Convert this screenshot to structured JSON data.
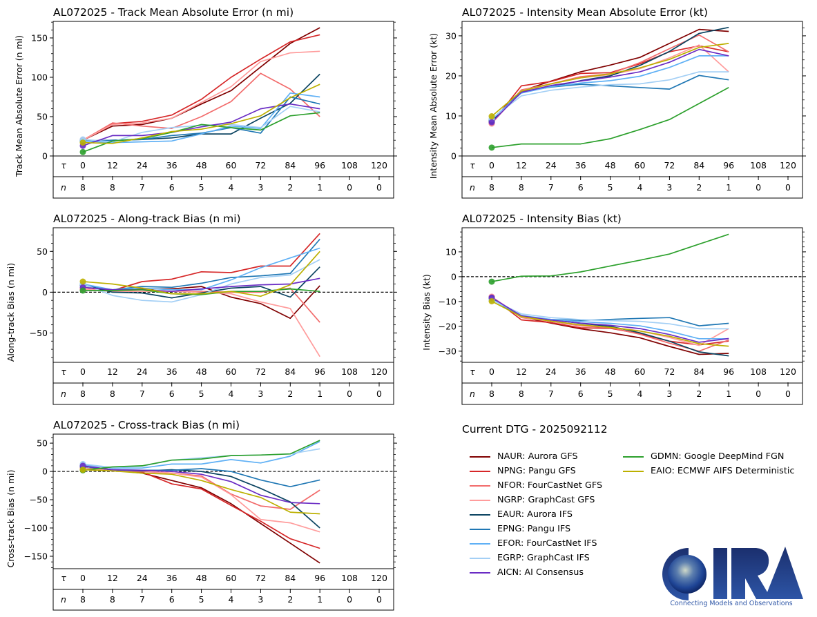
{
  "storm": "AL072025",
  "dtg_label": "Current DTG - 2025092112",
  "tau_label": "τ",
  "n_label": "n",
  "logo": {
    "name": "CIRA",
    "tagline": "Connecting Models and Observations"
  },
  "models": [
    {
      "id": "NAUR",
      "label": "NAUR: Aurora GFS",
      "color": "#800000"
    },
    {
      "id": "NPNG",
      "label": "NPNG: Pangu GFS",
      "color": "#d62728"
    },
    {
      "id": "NFOR",
      "label": "NFOR: FourCastNet GFS",
      "color": "#f26b6b"
    },
    {
      "id": "NGRP",
      "label": "NGRP: GraphCast GFS",
      "color": "#ff9c9c"
    },
    {
      "id": "EAUR",
      "label": "EAUR: Aurora IFS",
      "color": "#0b4461"
    },
    {
      "id": "EPNG",
      "label": "EPNG: Pangu IFS",
      "color": "#1f77b4"
    },
    {
      "id": "EFOR",
      "label": "EFOR: FourCastNet IFS",
      "color": "#5fb0f5"
    },
    {
      "id": "EGRP",
      "label": "EGRP: GraphCast IFS",
      "color": "#a3cff5"
    },
    {
      "id": "AICN",
      "label": "AICN: AI Consensus",
      "color": "#6a2cc4"
    },
    {
      "id": "GDMN",
      "label": "GDMN: Google DeepMind FGN",
      "color": "#2ca02c"
    },
    {
      "id": "EAIO",
      "label": "EAIO: ECMWF AIFS Deterministic",
      "color": "#bcb000"
    }
  ],
  "chart_data": [
    {
      "id": "track",
      "type": "line",
      "title": "AL072025 - Track Mean Absolute Error (n mi)",
      "xlabel": "τ",
      "ylabel": "Track Mean Absolute Error (n mi)",
      "tau": [
        0,
        12,
        24,
        36,
        48,
        60,
        72,
        84,
        96,
        108,
        120
      ],
      "n": [
        8,
        8,
        7,
        6,
        5,
        4,
        3,
        2,
        1,
        0,
        0
      ],
      "yticks": [
        0,
        50,
        100,
        150
      ],
      "ylim": [
        0,
        171
      ],
      "zero_line": false,
      "series": [
        {
          "name": "NAUR",
          "values": [
            20,
            38,
            40,
            48,
            66,
            83,
            113,
            143,
            163
          ]
        },
        {
          "name": "NPNG",
          "values": [
            20,
            41,
            44,
            52,
            72,
            100,
            123,
            145,
            154
          ]
        },
        {
          "name": "NFOR",
          "values": [
            20,
            42,
            38,
            35,
            50,
            69,
            105,
            85,
            50
          ]
        },
        {
          "name": "NGRP",
          "values": [
            20,
            40,
            42,
            48,
            68,
            88,
            120,
            131,
            133
          ]
        },
        {
          "name": "EAUR",
          "values": [
            19,
            20,
            21,
            23,
            28,
            28,
            48,
            67,
            104
          ]
        },
        {
          "name": "EPNG",
          "values": [
            19,
            20,
            21,
            26,
            29,
            36,
            29,
            75,
            66
          ]
        },
        {
          "name": "EFOR",
          "values": [
            19,
            17,
            18,
            19,
            28,
            38,
            35,
            80,
            75
          ]
        },
        {
          "name": "EGRP",
          "values": [
            21,
            18,
            30,
            36,
            39,
            40,
            36,
            63,
            56
          ]
        },
        {
          "name": "AICN",
          "values": [
            13,
            26,
            26,
            30,
            37,
            43,
            60,
            66,
            60
          ]
        },
        {
          "name": "GDMN",
          "values": [
            5,
            19,
            22,
            30,
            40,
            36,
            33,
            51,
            55
          ]
        },
        {
          "name": "EAIO",
          "values": [
            17,
            16,
            23,
            31,
            34,
            41,
            51,
            74,
            91
          ]
        }
      ]
    },
    {
      "id": "intensity",
      "type": "line",
      "title": "AL072025 - Intensity Mean Absolute Error (kt)",
      "xlabel": "τ",
      "ylabel": "Intensity Mean Absolute Error (kt)",
      "tau": [
        0,
        12,
        24,
        36,
        48,
        60,
        72,
        84,
        96,
        108,
        120
      ],
      "n": [
        8,
        8,
        7,
        6,
        5,
        4,
        3,
        2,
        1,
        0,
        0
      ],
      "yticks": [
        0,
        10,
        20,
        30
      ],
      "ylim": [
        0,
        33.6
      ],
      "zero_line": false,
      "series": [
        {
          "name": "NAUR",
          "values": [
            8.3,
            16.2,
            18.7,
            21.0,
            22.7,
            24.6,
            28.1,
            31.6,
            31.1
          ]
        },
        {
          "name": "NPNG",
          "values": [
            8.2,
            17.5,
            18.6,
            20.6,
            20.8,
            23.0,
            26.0,
            27.5,
            26.0
          ]
        },
        {
          "name": "NFOR",
          "values": [
            8.1,
            16.5,
            18.0,
            19.8,
            20.5,
            23.3,
            26.8,
            30.2,
            26.0
          ]
        },
        {
          "name": "NGRP",
          "values": [
            8.1,
            16.3,
            18.0,
            19.5,
            20.3,
            21.8,
            24.5,
            27.7,
            21.0
          ]
        },
        {
          "name": "EAUR",
          "values": [
            8.7,
            16.0,
            17.3,
            18.8,
            20.0,
            22.6,
            26.1,
            30.6,
            32.1
          ]
        },
        {
          "name": "EPNG",
          "values": [
            9.0,
            16.0,
            17.2,
            17.9,
            17.5,
            17.1,
            16.7,
            20.1,
            19.0
          ]
        },
        {
          "name": "EFOR",
          "values": [
            9.2,
            15.7,
            17.3,
            18.2,
            18.8,
            19.9,
            22.1,
            25.0,
            25.0
          ]
        },
        {
          "name": "EGRP",
          "values": [
            9.3,
            15.0,
            16.4,
            17.2,
            17.8,
            18.0,
            19.0,
            21.0,
            21.0
          ]
        },
        {
          "name": "AICN",
          "values": [
            8.4,
            15.9,
            17.6,
            18.7,
            19.7,
            21.0,
            23.4,
            26.6,
            25.0
          ]
        },
        {
          "name": "GDMN",
          "values": [
            2.1,
            3.0,
            3.0,
            3.0,
            4.3,
            6.6,
            9.1,
            13.1,
            17.1
          ]
        },
        {
          "name": "EAIO",
          "values": [
            9.9,
            16.2,
            18.0,
            19.5,
            20.5,
            22.0,
            24.1,
            27.1,
            28.1
          ]
        }
      ]
    },
    {
      "id": "along",
      "type": "line",
      "title": "AL072025 - Along-track Bias (n mi)",
      "xlabel": "τ",
      "ylabel": "Along-track Bias (n mi)",
      "tau": [
        0,
        12,
        24,
        36,
        48,
        60,
        72,
        84,
        96,
        108,
        120
      ],
      "n": [
        8,
        8,
        7,
        6,
        5,
        4,
        3,
        2,
        1,
        0,
        0
      ],
      "yticks": [
        -50,
        0,
        50
      ],
      "ylim": [
        -86,
        79
      ],
      "zero_line": true,
      "series": [
        {
          "name": "NAUR",
          "values": [
            4,
            2,
            4,
            4,
            7,
            -6,
            -14,
            -32,
            8
          ]
        },
        {
          "name": "NPNG",
          "values": [
            4,
            2,
            13,
            16,
            25,
            24,
            32,
            32,
            72
          ]
        },
        {
          "name": "NFOR",
          "values": [
            4,
            1,
            3,
            1,
            1,
            0,
            0,
            5,
            -37
          ]
        },
        {
          "name": "NGRP",
          "values": [
            4,
            1,
            1,
            1,
            0,
            -2,
            -12,
            -20,
            -79
          ]
        },
        {
          "name": "EAUR",
          "values": [
            9,
            0,
            -1,
            -7,
            -1,
            5,
            7,
            -6,
            31
          ]
        },
        {
          "name": "EPNG",
          "values": [
            9,
            3,
            7,
            6,
            11,
            18,
            20,
            23,
            65
          ]
        },
        {
          "name": "EFOR",
          "values": [
            10,
            3,
            5,
            3,
            3,
            15,
            30,
            42,
            54
          ]
        },
        {
          "name": "EGRP",
          "values": [
            10,
            -4,
            -10,
            -12,
            -3,
            10,
            18,
            21,
            40
          ]
        },
        {
          "name": "AICN",
          "values": [
            6,
            3,
            3,
            1,
            4,
            7,
            9,
            10,
            17
          ]
        },
        {
          "name": "GDMN",
          "values": [
            2,
            2,
            3,
            -2,
            -3,
            1,
            1,
            4,
            1
          ]
        },
        {
          "name": "EAIO",
          "values": [
            13,
            10,
            5,
            -2,
            -2,
            1,
            -5,
            9,
            50
          ]
        }
      ]
    },
    {
      "id": "intbias",
      "type": "line",
      "title": "AL072025 - Intensity Bias (kt)",
      "xlabel": "τ",
      "ylabel": "Intensity Bias (kt)",
      "tau": [
        0,
        12,
        24,
        36,
        48,
        60,
        72,
        84,
        96,
        108,
        120
      ],
      "n": [
        8,
        8,
        7,
        6,
        5,
        4,
        3,
        2,
        1,
        0,
        0
      ],
      "yticks": [
        -30,
        -20,
        -10,
        0,
        10
      ],
      "ylim": [
        -34.5,
        19.7
      ],
      "zero_line": true,
      "series": [
        {
          "name": "NAUR",
          "values": [
            -8.3,
            -16.2,
            -18.7,
            -21.0,
            -22.6,
            -24.6,
            -28.1,
            -31.3,
            -30.9
          ]
        },
        {
          "name": "NPNG",
          "values": [
            -8.2,
            -17.4,
            -18.5,
            -20.6,
            -20.8,
            -23.0,
            -26.0,
            -27.5,
            -25.9
          ]
        },
        {
          "name": "NFOR",
          "values": [
            -8.1,
            -16.5,
            -18.0,
            -19.8,
            -20.5,
            -23.2,
            -26.8,
            -30.0,
            -25.5
          ]
        },
        {
          "name": "NGRP",
          "values": [
            -8.1,
            -16.3,
            -18.0,
            -19.5,
            -20.3,
            -21.8,
            -24.5,
            -27.7,
            -20.9
          ]
        },
        {
          "name": "EAUR",
          "values": [
            -8.7,
            -16.0,
            -17.3,
            -18.8,
            -20.0,
            -22.6,
            -26.0,
            -30.3,
            -31.9
          ]
        },
        {
          "name": "EPNG",
          "values": [
            -9.0,
            -16.0,
            -17.2,
            -17.6,
            -17.2,
            -16.8,
            -16.5,
            -19.8,
            -18.8
          ]
        },
        {
          "name": "EFOR",
          "values": [
            -9.2,
            -15.6,
            -17.2,
            -18.1,
            -18.8,
            -19.8,
            -22.0,
            -25.0,
            -25.0
          ]
        },
        {
          "name": "EGRP",
          "values": [
            -9.3,
            -15.0,
            -16.5,
            -17.3,
            -17.7,
            -18.0,
            -19.0,
            -21.0,
            -21.0
          ]
        },
        {
          "name": "AICN",
          "values": [
            -8.4,
            -15.8,
            -17.5,
            -18.7,
            -19.6,
            -20.9,
            -23.3,
            -26.4,
            -24.9
          ]
        },
        {
          "name": "GDMN",
          "values": [
            -2.0,
            0.2,
            0.3,
            1.9,
            4.3,
            6.6,
            9.1,
            13.1,
            17.1
          ]
        },
        {
          "name": "EAIO",
          "values": [
            -9.9,
            -16.1,
            -17.9,
            -19.4,
            -20.4,
            -21.9,
            -24.0,
            -27.0,
            -28.0
          ]
        }
      ]
    },
    {
      "id": "cross",
      "type": "line",
      "title": "AL072025 - Cross-track Bias (n mi)",
      "xlabel": "τ",
      "ylabel": "Cross-track Bias (n mi)",
      "tau": [
        0,
        12,
        24,
        36,
        48,
        60,
        72,
        84,
        96,
        108,
        120
      ],
      "n": [
        8,
        8,
        7,
        6,
        5,
        4,
        3,
        2,
        1,
        0,
        0
      ],
      "yticks": [
        -150,
        -100,
        -50,
        0,
        50
      ],
      "ylim": [
        -172,
        66
      ],
      "zero_line": true,
      "series": [
        {
          "name": "NAUR",
          "values": [
            6,
            2,
            -3,
            -16,
            -29,
            -57,
            -92,
            -127,
            -162
          ]
        },
        {
          "name": "NPNG",
          "values": [
            6,
            2,
            -1,
            -22,
            -31,
            -60,
            -88,
            -119,
            -136
          ]
        },
        {
          "name": "NFOR",
          "values": [
            6,
            1,
            0,
            -3,
            -8,
            -40,
            -61,
            -67,
            -33
          ]
        },
        {
          "name": "NGRP",
          "values": [
            6,
            1,
            1,
            -3,
            -10,
            -41,
            -85,
            -91,
            -107
          ]
        },
        {
          "name": "EAUR",
          "values": [
            9,
            3,
            1,
            3,
            0,
            -9,
            -30,
            -54,
            -100
          ]
        },
        {
          "name": "EPNG",
          "values": [
            9,
            3,
            2,
            2,
            5,
            0,
            -15,
            -27,
            -15
          ]
        },
        {
          "name": "EFOR",
          "values": [
            12,
            6,
            6,
            13,
            13,
            21,
            15,
            27,
            53
          ]
        },
        {
          "name": "EGRP",
          "values": [
            13,
            7,
            9,
            20,
            24,
            28,
            29,
            31,
            40
          ]
        },
        {
          "name": "AICN",
          "values": [
            10,
            3,
            2,
            0,
            -5,
            -18,
            -42,
            -55,
            -57
          ]
        },
        {
          "name": "GDMN",
          "values": [
            2,
            8,
            10,
            20,
            22,
            28,
            29,
            31,
            55
          ]
        },
        {
          "name": "EAIO",
          "values": [
            3,
            1,
            -3,
            -5,
            -16,
            -32,
            -46,
            -72,
            -75
          ]
        }
      ]
    }
  ]
}
